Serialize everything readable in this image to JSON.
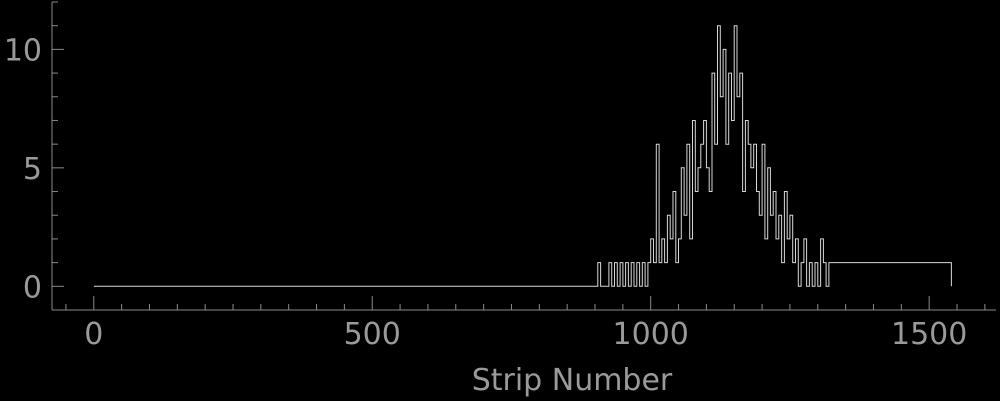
{
  "chart_data": {
    "type": "line",
    "title": "",
    "xlabel": "Strip Number",
    "ylabel": "",
    "xlim": [
      -75,
      1620
    ],
    "ylim": [
      -1,
      12
    ],
    "x_ticks": [
      0,
      500,
      1000,
      1500
    ],
    "x_tick_labels": [
      "0",
      "500",
      "1000",
      "1500"
    ],
    "y_ticks": [
      0,
      5,
      10
    ],
    "y_tick_labels": [
      "0",
      "5",
      "10"
    ],
    "x_minor_step": 50,
    "y_minor_step": 1,
    "grid": false,
    "colors": {
      "background": "#000000",
      "axis": "#8a8a8a",
      "text": "#9a9a9a",
      "trace": "#d8d8d8"
    },
    "series": [
      {
        "x": [
          0,
          900,
          905,
          910,
          915,
          920,
          925,
          930,
          935,
          940,
          945,
          950,
          955,
          960,
          965,
          970,
          975,
          980,
          985,
          990,
          995,
          1000,
          1005,
          1010,
          1015,
          1020,
          1025,
          1030,
          1035,
          1040,
          1045,
          1050,
          1055,
          1060,
          1065,
          1070,
          1075,
          1080,
          1085,
          1090,
          1095,
          1100,
          1105,
          1110,
          1115,
          1120,
          1125,
          1130,
          1135,
          1140,
          1145,
          1150,
          1155,
          1160,
          1165,
          1170,
          1175,
          1180,
          1185,
          1190,
          1195,
          1200,
          1205,
          1210,
          1215,
          1220,
          1225,
          1230,
          1235,
          1240,
          1245,
          1250,
          1255,
          1260,
          1265,
          1270,
          1275,
          1280,
          1285,
          1290,
          1295,
          1300,
          1305,
          1310,
          1315,
          1320,
          1540
        ],
        "y": [
          0,
          0,
          1,
          0,
          0,
          0,
          1,
          0,
          1,
          0,
          1,
          0,
          1,
          0,
          1,
          0,
          1,
          0,
          1,
          0,
          1,
          2,
          1,
          6,
          1,
          2,
          1,
          3,
          2,
          4,
          1,
          2,
          5,
          3,
          6,
          2,
          7,
          4,
          5,
          6,
          7,
          5,
          4,
          9,
          6,
          11,
          8,
          10,
          6,
          9,
          7,
          11,
          8,
          9,
          4,
          7,
          6,
          5,
          6,
          4,
          3,
          6,
          2,
          5,
          3,
          4,
          2,
          3,
          1,
          4,
          2,
          3,
          1,
          2,
          0,
          1,
          2,
          0,
          1,
          0,
          1,
          0,
          2,
          1,
          0,
          1,
          0
        ]
      }
    ]
  }
}
